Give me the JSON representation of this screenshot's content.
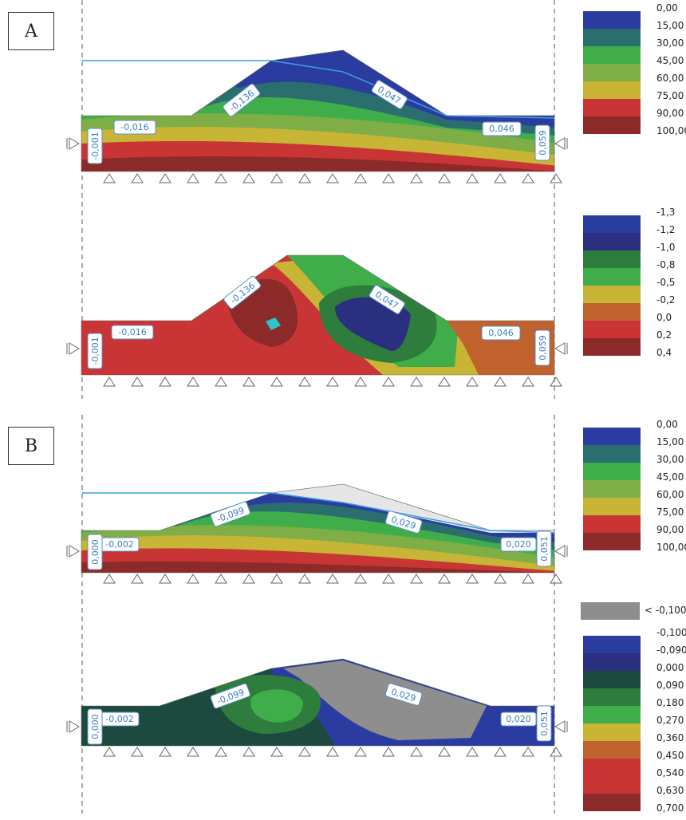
{
  "sections": [
    {
      "label": "A"
    },
    {
      "label": "B"
    }
  ],
  "legends": [
    {
      "labels": [
        "0,00",
        "15,00",
        "30,00",
        "45,00",
        "60,00",
        "75,00",
        "90,00",
        "100,00"
      ],
      "colors": [
        "#2b3ca0",
        "#2a6e6e",
        "#3fae4a",
        "#7fae46",
        "#c9b535",
        "#c93535",
        "#8c2a2a"
      ]
    },
    {
      "labels": [
        "-1,3",
        "-1,2",
        "-1,0",
        "-0,8",
        "-0,5",
        "-0,2",
        "0,0",
        "0,2",
        "0,4"
      ],
      "colors": [
        "#2b3ca0",
        "#2a2f80",
        "#2e7d3c",
        "#3fae4a",
        "#c9b535",
        "#c0622e",
        "#c93535",
        "#8c2a2a"
      ]
    },
    {
      "labels": [
        "0,00",
        "15,00",
        "30,00",
        "45,00",
        "60,00",
        "75,00",
        "90,00",
        "100,00"
      ],
      "colors": [
        "#2b3ca0",
        "#2a6e6e",
        "#3fae4a",
        "#7fae46",
        "#c9b535",
        "#c93535",
        "#8c2a2a"
      ]
    },
    {
      "labels": [
        "-0,100",
        "-0,090",
        "0,000",
        "0,090",
        "0,180",
        "0,270",
        "0,360",
        "0,450",
        "0,540",
        "0,630",
        "0,700"
      ],
      "colors": [
        "#2b3ca0",
        "#2a2f80",
        "#1d4a3e",
        "#2e7d3c",
        "#3fae4a",
        "#c9b535",
        "#c0622e",
        "#c93535",
        "#c93535",
        "#8c2a2a"
      ]
    }
  ],
  "gray_key": {
    "label": "< -0,100",
    "color": "#8e8e8e"
  },
  "panel_labels": [
    {
      "left": "-0,016",
      "left_vertical": "-0,001",
      "slope": "-0,136",
      "crest": "0,047",
      "right": "0,046",
      "right_vertical": "0,059"
    },
    {
      "left": "-0,016",
      "left_vertical": "-0,001",
      "slope": "-0,136",
      "crest": "0,047",
      "right": "0,046",
      "right_vertical": "0,059"
    },
    {
      "left": "-0,002",
      "left_vertical": "0,000",
      "slope": "-0,099",
      "crest": "0,029",
      "right": "0,020",
      "right_vertical": "0,051"
    },
    {
      "left": "-0,002",
      "left_vertical": "0,000",
      "slope": "-0,099",
      "crest": "0,029",
      "right": "0,020",
      "right_vertical": "0,051"
    }
  ]
}
